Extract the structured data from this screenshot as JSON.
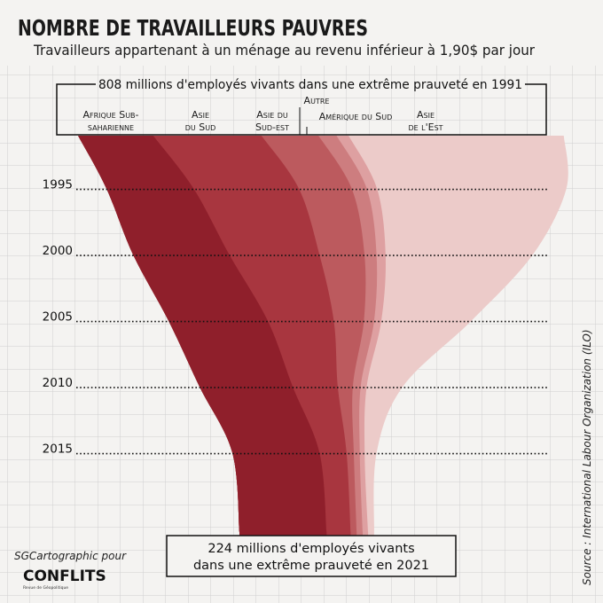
{
  "header": {
    "title": "NOMBRE DE TRAVAILLEURS PAUVRES",
    "subtitle": "Travailleurs appartenant à un ménage au revenu inférieur à 1,90$ par jour"
  },
  "top_box": {
    "label": "808 millions d'employés vivants dans une extrême prauveté en 1991"
  },
  "region_labels": {
    "ssa_line1": "Afrique Sub-",
    "ssa_line2": "saharienne",
    "sa_line1": "Asie",
    "sa_line2": "du Sud",
    "sea_line1": "Asie du",
    "sea_line2": "Sud-est",
    "other": "Autre",
    "latam": "Amérique du Sud",
    "ea_line1": "Asie",
    "ea_line2": "de l'Est"
  },
  "bottom_box": {
    "line1": "224 millions d'employés vivants",
    "line2": "dans une extrême prauveté en 2021"
  },
  "credit": {
    "line1": "SGCartographic pour",
    "logo": "CONFLITS",
    "logo_tagline": "Revue de Géopolitique"
  },
  "source": "Source : International Labour Organization (ILO)",
  "colors": {
    "ssa": "#8f1f2b",
    "sa": "#a8363f",
    "sea": "#bc5a5e",
    "other": "#cd7d7f",
    "latam": "#dea0a1",
    "ea": "#eccbc9",
    "background": "#f4f3f1",
    "grid": "#cfcfcf"
  },
  "chart_data": {
    "type": "area",
    "orientation": "vertical-stream",
    "y_axis": {
      "ticks": [
        1995,
        2000,
        2005,
        2010,
        2015
      ],
      "range": [
        1991,
        2021
      ]
    },
    "unit": "millions of working poor",
    "total_1991": 808,
    "total_2021": 224,
    "series": [
      {
        "name": "Afrique Sub-saharienne",
        "key": "ssa",
        "years": [
          1991,
          1995,
          2000,
          2005,
          2010,
          2015,
          2021
        ],
        "values": [
          125,
          145,
          160,
          165,
          155,
          145,
          145
        ]
      },
      {
        "name": "Asie du Sud",
        "key": "sa",
        "years": [
          1991,
          1995,
          2000,
          2005,
          2010,
          2015,
          2021
        ],
        "values": [
          180,
          175,
          150,
          110,
          75,
          45,
          40
        ]
      },
      {
        "name": "Asie du Sud-est",
        "key": "sea",
        "years": [
          1991,
          1995,
          2000,
          2005,
          2010,
          2015,
          2021
        ],
        "values": [
          95,
          88,
          75,
          50,
          25,
          12,
          10
        ]
      },
      {
        "name": "Autre",
        "key": "other",
        "years": [
          1991,
          1995,
          2000,
          2005,
          2010,
          2015,
          2021
        ],
        "values": [
          30,
          25,
          20,
          17,
          13,
          10,
          10
        ]
      },
      {
        "name": "Amérique du Sud",
        "key": "latam",
        "years": [
          1991,
          1995,
          2000,
          2005,
          2010,
          2015,
          2021
        ],
        "values": [
          20,
          17,
          15,
          12,
          10,
          8,
          9
        ]
      },
      {
        "name": "Asie de l'Est",
        "key": "ea",
        "years": [
          1991,
          1995,
          2000,
          2005,
          2010,
          2015,
          2021
        ],
        "values": [
          358,
          315,
          245,
          150,
          60,
          20,
          10
        ]
      }
    ]
  }
}
